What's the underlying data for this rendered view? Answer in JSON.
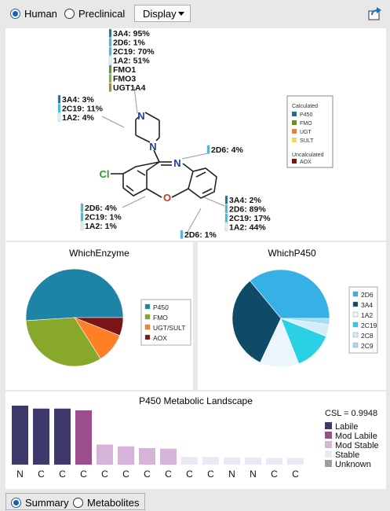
{
  "toolbar": {
    "species_options": [
      {
        "label": "Human",
        "selected": true
      },
      {
        "label": "Preclinical",
        "selected": false
      }
    ],
    "display_label": "Display",
    "display_icon": "caret-down-icon",
    "export_icon": "export-icon"
  },
  "structure_panel": {
    "sites": [
      {
        "lines": [
          {
            "text": "3A4: 95%",
            "color": "#1f6f8b"
          },
          {
            "text": "2D6: 1%",
            "color": "#4fb3d9"
          },
          {
            "text": "2C19: 70%",
            "color": "#33c2e0"
          },
          {
            "text": "1A2: 51%",
            "color": "#e6f2f8"
          },
          {
            "text": "FMO1",
            "color": "#6b8e23"
          },
          {
            "text": "FMO3",
            "color": "#8bb02a"
          },
          {
            "text": "UGT1A4",
            "color": "#b8860b"
          }
        ]
      },
      {
        "lines": [
          {
            "text": "3A4: 3%",
            "color": "#1f6f8b"
          },
          {
            "text": "2C19: 11%",
            "color": "#33c2e0"
          },
          {
            "text": "1A2: 4%",
            "color": "#e6f2f8"
          }
        ]
      },
      {
        "lines": [
          {
            "text": "2D6: 4%",
            "color": "#4fb3d9"
          }
        ]
      },
      {
        "lines": [
          {
            "text": "2D6: 4%",
            "color": "#4fb3d9"
          },
          {
            "text": "2C19: 1%",
            "color": "#33c2e0"
          },
          {
            "text": "1A2: 1%",
            "color": "#e6f2f8"
          }
        ]
      },
      {
        "lines": [
          {
            "text": "3A4: 2%",
            "color": "#1f6f8b"
          },
          {
            "text": "2D6: 89%",
            "color": "#4fb3d9"
          },
          {
            "text": "2C19: 17%",
            "color": "#33c2e0"
          },
          {
            "text": "1A2: 44%",
            "color": "#e6f2f8"
          }
        ]
      },
      {
        "lines": [
          {
            "text": "2D6: 1%",
            "color": "#4fb3d9"
          }
        ]
      }
    ],
    "atoms": {
      "n_top": "N",
      "n_bottom": "N",
      "n_imine": "N",
      "cl": "Cl",
      "o": "O"
    },
    "legend": {
      "calculated_title": "Calculated",
      "calculated_items": [
        {
          "label": "P450",
          "color": "#1f6f8b"
        },
        {
          "label": "FMO",
          "color": "#6b8e23"
        },
        {
          "label": "UGT",
          "color": "#e8823c"
        },
        {
          "label": "SULT",
          "color": "#f2d55a"
        }
      ],
      "uncalculated_title": "Uncalculated",
      "uncalculated_items": [
        {
          "label": "AOX",
          "color": "#7a1515"
        }
      ]
    }
  },
  "chart_data": [
    {
      "type": "pie",
      "title": "WhichEnzyme",
      "labels": [
        "P450",
        "FMO",
        "UGT/SULT",
        "AOX"
      ],
      "values": [
        51,
        33,
        10,
        6
      ],
      "colors": [
        "#1e84a6",
        "#88a82b",
        "#ff7f27",
        "#7a1515"
      ],
      "legend": "right"
    },
    {
      "type": "pie",
      "title": "WhichP450",
      "labels": [
        "2D6",
        "3A4",
        "1A2",
        "2C19",
        "2C8",
        "2C9"
      ],
      "values": [
        36,
        32,
        13,
        13,
        4,
        2
      ],
      "colors": [
        "#35b1e6",
        "#0f4a66",
        "#eaf6fb",
        "#2ad0e4",
        "#d2eef8",
        "#a8dcf0"
      ],
      "legend": "right"
    },
    {
      "type": "bar",
      "title": "P450 Metabolic Landscape",
      "categories": [
        "N",
        "C",
        "C",
        "C",
        "C",
        "C",
        "C",
        "C",
        "C",
        "C",
        "N",
        "N",
        "C",
        "C"
      ],
      "values": [
        1.0,
        0.95,
        0.95,
        0.92,
        0.34,
        0.31,
        0.28,
        0.27,
        0.13,
        0.13,
        0.12,
        0.12,
        0.11,
        0.11
      ],
      "classes": [
        "Labile",
        "Labile",
        "Labile",
        "Mod Labile",
        "Mod Stable",
        "Mod Stable",
        "Mod Stable",
        "Mod Stable",
        "Stable",
        "Stable",
        "Stable",
        "Stable",
        "Stable",
        "Stable"
      ],
      "ylim": [
        0,
        1
      ],
      "annotation": "CSL = 0.9948",
      "legend_items": [
        {
          "label": "Labile",
          "color": "#3d3a6b"
        },
        {
          "label": "Mod Labile",
          "color": "#9b4d8c"
        },
        {
          "label": "Mod Stable",
          "color": "#d6b3d8"
        },
        {
          "label": "Stable",
          "color": "#ece7f5"
        },
        {
          "label": "Unknown",
          "color": "#9e9e9e"
        }
      ]
    }
  ],
  "bottom": {
    "tabs": [
      {
        "label": "Summary",
        "selected": true
      },
      {
        "label": "Metabolites",
        "selected": false
      }
    ]
  }
}
